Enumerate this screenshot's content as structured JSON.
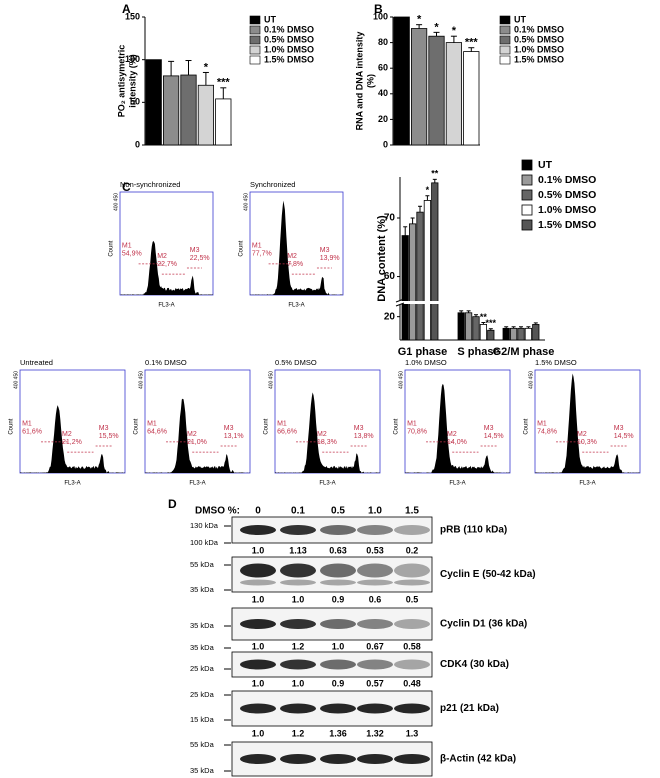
{
  "chart_data": [
    {
      "type": "bar",
      "panel": "A",
      "ylabel": [
        "PO₂ antisymetric",
        "intensity (%)"
      ],
      "categories": [
        "UT",
        "0.1% DMSO",
        "0.5% DMSO",
        "1.0% DMSO",
        "1.5% DMSO"
      ],
      "values": [
        100,
        81,
        82,
        70,
        54
      ],
      "errors": [
        0,
        17,
        17,
        15,
        13
      ],
      "annotations": [
        null,
        null,
        null,
        "*",
        "***"
      ],
      "colors": [
        "#000000",
        "#8c8c8c",
        "#6e6e6e",
        "#d4d4d4",
        "#ffffff"
      ],
      "ylim": [
        0,
        150
      ],
      "yticks": [
        0,
        50,
        100,
        150
      ]
    },
    {
      "type": "bar",
      "panel": "B",
      "ylabel": [
        "RNA and DNA intensity",
        "(%)"
      ],
      "categories": [
        "UT",
        "0.1% DMSO",
        "0.5% DMSO",
        "1.0% DMSO",
        "1.5% DMSO"
      ],
      "values": [
        100,
        91,
        85,
        80,
        73
      ],
      "errors": [
        0,
        3,
        3,
        5,
        3
      ],
      "annotations": [
        null,
        "*",
        "*",
        "*",
        "***"
      ],
      "colors": [
        "#000000",
        "#8c8c8c",
        "#6e6e6e",
        "#d4d4d4",
        "#ffffff"
      ],
      "ylim": [
        0,
        100
      ],
      "yticks": [
        0,
        20,
        40,
        60,
        80,
        100
      ]
    },
    {
      "type": "broken_grouped_bar",
      "ylabel": [
        "DNA content (%)"
      ],
      "categories": [
        "G1 phase",
        "S phase",
        "G2/M phase"
      ],
      "series": [
        {
          "name": "UT",
          "color": "#000000",
          "values": [
            67,
            21,
            17
          ],
          "errors": [
            1.5,
            0.5,
            0.4
          ],
          "annotations": [
            null,
            null,
            null
          ]
        },
        {
          "name": "0.1% DMSO",
          "color": "#9a9a9a",
          "values": [
            69,
            21,
            17
          ],
          "errors": [
            1,
            0.5,
            0.4
          ],
          "annotations": [
            null,
            null,
            null
          ]
        },
        {
          "name": "0.5% DMSO",
          "color": "#666666",
          "values": [
            71,
            20,
            17
          ],
          "errors": [
            1,
            0.5,
            0.4
          ],
          "annotations": [
            null,
            null,
            null
          ]
        },
        {
          "name": "1.0% DMSO",
          "color": "#ffffff",
          "values": [
            73,
            18,
            17
          ],
          "errors": [
            0.8,
            0.5,
            0.4
          ],
          "annotations": [
            "*",
            "**",
            null
          ]
        },
        {
          "name": "1.5% DMSO",
          "color": "#555555",
          "values": [
            76,
            16.5,
            18
          ],
          "errors": [
            0.6,
            0.4,
            0.4
          ],
          "annotations": [
            "**",
            "***",
            null
          ]
        }
      ],
      "ylim_lower": [
        14,
        23
      ],
      "ylim_upper": [
        56,
        77
      ],
      "yticks": [
        20,
        60,
        70
      ]
    }
  ],
  "panel_c": {
    "label": "C",
    "y_axis_label": "Count",
    "x_axis_label": "FL3-A",
    "y_tick_label": "400 450",
    "flow_cytometry": [
      {
        "title": "Non-synchronized",
        "gates": [
          {
            "name": "M1",
            "value": "54,9%"
          },
          {
            "name": "M2",
            "value": "22,7%"
          },
          {
            "name": "M3",
            "value": "22,5%"
          }
        ]
      },
      {
        "title": "Synchronized",
        "gates": [
          {
            "name": "M1",
            "value": "77,7%"
          },
          {
            "name": "M2",
            "value": "7,8%"
          },
          {
            "name": "M3",
            "value": "13,9%"
          }
        ]
      },
      {
        "title": "Untreated",
        "gates": [
          {
            "name": "M1",
            "value": "61,6%"
          },
          {
            "name": "M2",
            "value": "21,2%"
          },
          {
            "name": "M3",
            "value": "15,5%"
          }
        ]
      },
      {
        "title": "0.1% DMSO",
        "gates": [
          {
            "name": "M1",
            "value": "64,6%"
          },
          {
            "name": "M2",
            "value": "21,0%"
          },
          {
            "name": "M3",
            "value": "13,1%"
          }
        ]
      },
      {
        "title": "0.5% DMSO",
        "gates": [
          {
            "name": "M1",
            "value": "66,6%"
          },
          {
            "name": "M2",
            "value": "18,3%"
          },
          {
            "name": "M3",
            "value": "13,8%"
          }
        ]
      },
      {
        "title": "1.0% DMSO",
        "gates": [
          {
            "name": "M1",
            "value": "70,8%"
          },
          {
            "name": "M2",
            "value": "14,0%"
          },
          {
            "name": "M3",
            "value": "14,5%"
          }
        ]
      },
      {
        "title": "1.5% DMSO",
        "gates": [
          {
            "name": "M1",
            "value": "74,8%"
          },
          {
            "name": "M2",
            "value": "10,3%"
          },
          {
            "name": "M3",
            "value": "14,5%"
          }
        ]
      }
    ]
  },
  "panel_d": {
    "label": "D",
    "header": "DMSO %:",
    "lanes": [
      "0",
      "0.1",
      "0.5",
      "1.0",
      "1.5"
    ],
    "blots": [
      {
        "protein": "pRB (110 kDa)",
        "markers": [
          "130 kDa",
          "100 kDa"
        ],
        "quantification": [
          "1.0",
          "1.13",
          "0.63",
          "0.53",
          "0.2"
        ]
      },
      {
        "protein": "Cyclin E (50-42 kDa)",
        "markers": [
          "55 kDa",
          "35 kDa"
        ],
        "quantification": [
          "1.0",
          "1.0",
          "0.9",
          "0.6",
          "0.5"
        ]
      },
      {
        "protein": "Cyclin D1 (36 kDa)",
        "markers": [
          "35 kDa"
        ],
        "quantification": [
          "1.0",
          "1.2",
          "1.0",
          "0.67",
          "0.58"
        ]
      },
      {
        "protein": "CDK4 (30 kDa)",
        "markers": [
          "35 kDa",
          "25 kDa"
        ],
        "quantification": [
          "1.0",
          "1.0",
          "0.9",
          "0.57",
          "0.48"
        ]
      },
      {
        "protein": "p21 (21 kDa)",
        "markers": [
          "25 kDa",
          "15 kDa"
        ],
        "quantification": [
          "1.0",
          "1.2",
          "1.36",
          "1.32",
          "1.3"
        ]
      },
      {
        "protein": "β-Actin (42 kDa)",
        "markers": [
          "55 kDa",
          "35 kDa"
        ],
        "quantification": []
      }
    ]
  }
}
